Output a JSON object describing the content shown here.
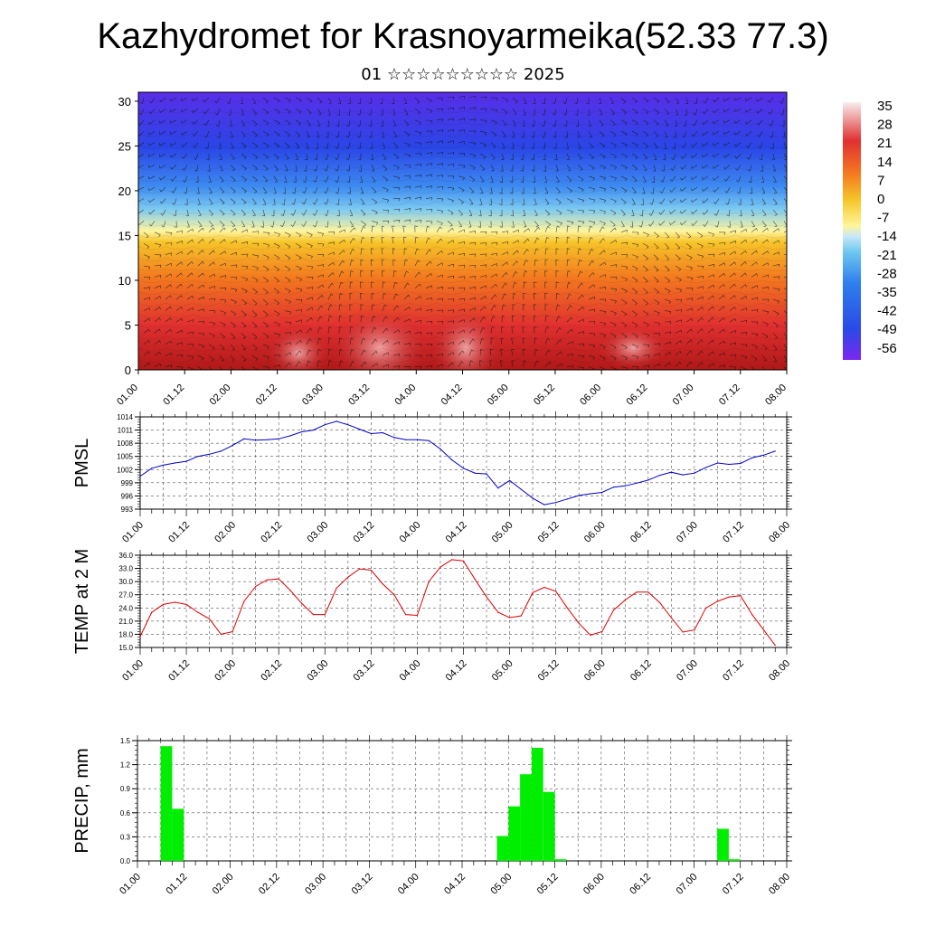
{
  "title": "Kazhydromet for Krasnoyarmeika(52.33 77.3)",
  "subtitle": "01 ☆☆☆☆☆☆☆☆☆ 2025",
  "time_ticks": [
    "01.00",
    "01.12",
    "02.00",
    "02.12",
    "03.00",
    "03.12",
    "04.00",
    "04.12",
    "05.00",
    "05.12",
    "06.00",
    "06.12",
    "07.00",
    "07.12",
    "08.00"
  ],
  "chart_data": [
    {
      "type": "heatmap",
      "ylim": [
        0,
        31
      ],
      "yticks": [
        0,
        5,
        10,
        15,
        20,
        25,
        30
      ],
      "colorbar_labels": [
        "35",
        "28",
        "21",
        "14",
        "7",
        "0",
        "-7",
        "-14",
        "-21",
        "-28",
        "-35",
        "-42",
        "-49",
        "-56"
      ],
      "color_stops": [
        "#f8f0f0",
        "#e03030",
        "#f57b21",
        "#f5c62a",
        "#fff59a",
        "#6fc8f0",
        "#2a62e6",
        "#7a28f0"
      ],
      "temperature_profile_levels": [
        0,
        5,
        10,
        15,
        17,
        20,
        25,
        30
      ],
      "temperature_profile_values": [
        30,
        22,
        12,
        0,
        -7,
        -21,
        -49,
        -56
      ]
    },
    {
      "type": "line",
      "ylabel": "PMSL",
      "ylim": [
        993,
        1014
      ],
      "yticks": [
        "993",
        "996",
        "999",
        "1002",
        "1005",
        "1008",
        "1011",
        "1014"
      ],
      "color": "#0000cc",
      "x": [
        0,
        3,
        6,
        9,
        12,
        15,
        18,
        21,
        24,
        27,
        30,
        33,
        36,
        39,
        42,
        45,
        48,
        51,
        54,
        57,
        60,
        63,
        66,
        69,
        72,
        75,
        78,
        81,
        84,
        87,
        90,
        93,
        96,
        99,
        102,
        105,
        108,
        111,
        114,
        117,
        120,
        123,
        126,
        129,
        132,
        135,
        138,
        141,
        144,
        147,
        150,
        153,
        156,
        159,
        162,
        165
      ],
      "values": [
        1000.5,
        1002.3,
        1003,
        1003.5,
        1003.9,
        1005,
        1005.5,
        1006.2,
        1007.5,
        1009,
        1008.7,
        1008.8,
        1009,
        1009.7,
        1010.6,
        1011,
        1012.2,
        1013,
        1012.2,
        1011.2,
        1010.2,
        1010.4,
        1009.3,
        1008.8,
        1008.8,
        1008.6,
        1006.7,
        1004.2,
        1002.3,
        1001.2,
        1001,
        997.8,
        999.5,
        997.5,
        995.5,
        994,
        994.5,
        995.3,
        996.1,
        996.5,
        996.8,
        998,
        998.3,
        998.9,
        999.6,
        1000.7,
        1001.4,
        1000.8,
        1001.2,
        1002.5,
        1003.5,
        1003.2,
        1003.4,
        1004.7,
        1005.3,
        1006.2
      ]
    },
    {
      "type": "line",
      "ylabel": "TEMP at 2 M",
      "ylim": [
        15,
        36
      ],
      "yticks": [
        "15.0",
        "18.0",
        "21.0",
        "24.0",
        "27.0",
        "30.0",
        "33.0",
        "36.0"
      ],
      "color": "#dd0000",
      "x": [
        0,
        3,
        6,
        9,
        12,
        15,
        18,
        21,
        24,
        27,
        30,
        33,
        36,
        39,
        42,
        45,
        48,
        51,
        54,
        57,
        60,
        63,
        66,
        69,
        72,
        75,
        78,
        81,
        84,
        87,
        90,
        93,
        96,
        99,
        102,
        105,
        108,
        111,
        114,
        117,
        120,
        123,
        126,
        129,
        132,
        135,
        138,
        141,
        144,
        147,
        150,
        153,
        156,
        159,
        162,
        165
      ],
      "values": [
        17.5,
        23,
        24.8,
        25.3,
        24.8,
        23,
        21.5,
        18,
        18.6,
        25.5,
        28.9,
        30.4,
        30.6,
        28,
        25,
        22.5,
        22.5,
        28.5,
        31,
        32.9,
        32.6,
        29.5,
        27,
        22.5,
        22.3,
        30,
        33.3,
        35,
        34.7,
        30.5,
        26.5,
        23,
        21.8,
        22.2,
        27.5,
        28.7,
        27.8,
        24,
        20.5,
        17.8,
        18.6,
        23.5,
        25.8,
        27.6,
        27.6,
        25.2,
        21.8,
        18.5,
        19,
        24,
        25.5,
        26.5,
        26.8,
        22.5,
        19,
        15.5
      ]
    },
    {
      "type": "bar",
      "ylabel": "PRECIP, mm",
      "ylim": [
        0,
        1.5
      ],
      "yticks": [
        "0.0",
        "0.3",
        "0.6",
        "0.9",
        "1.2",
        "1.5"
      ],
      "color": "#00ee00",
      "x": [
        6,
        9,
        93,
        96,
        99,
        102,
        105,
        108,
        150,
        153
      ],
      "values": [
        1.43,
        0.65,
        0.31,
        0.68,
        1.08,
        1.41,
        0.86,
        0.02,
        0.4,
        0.02
      ]
    }
  ]
}
